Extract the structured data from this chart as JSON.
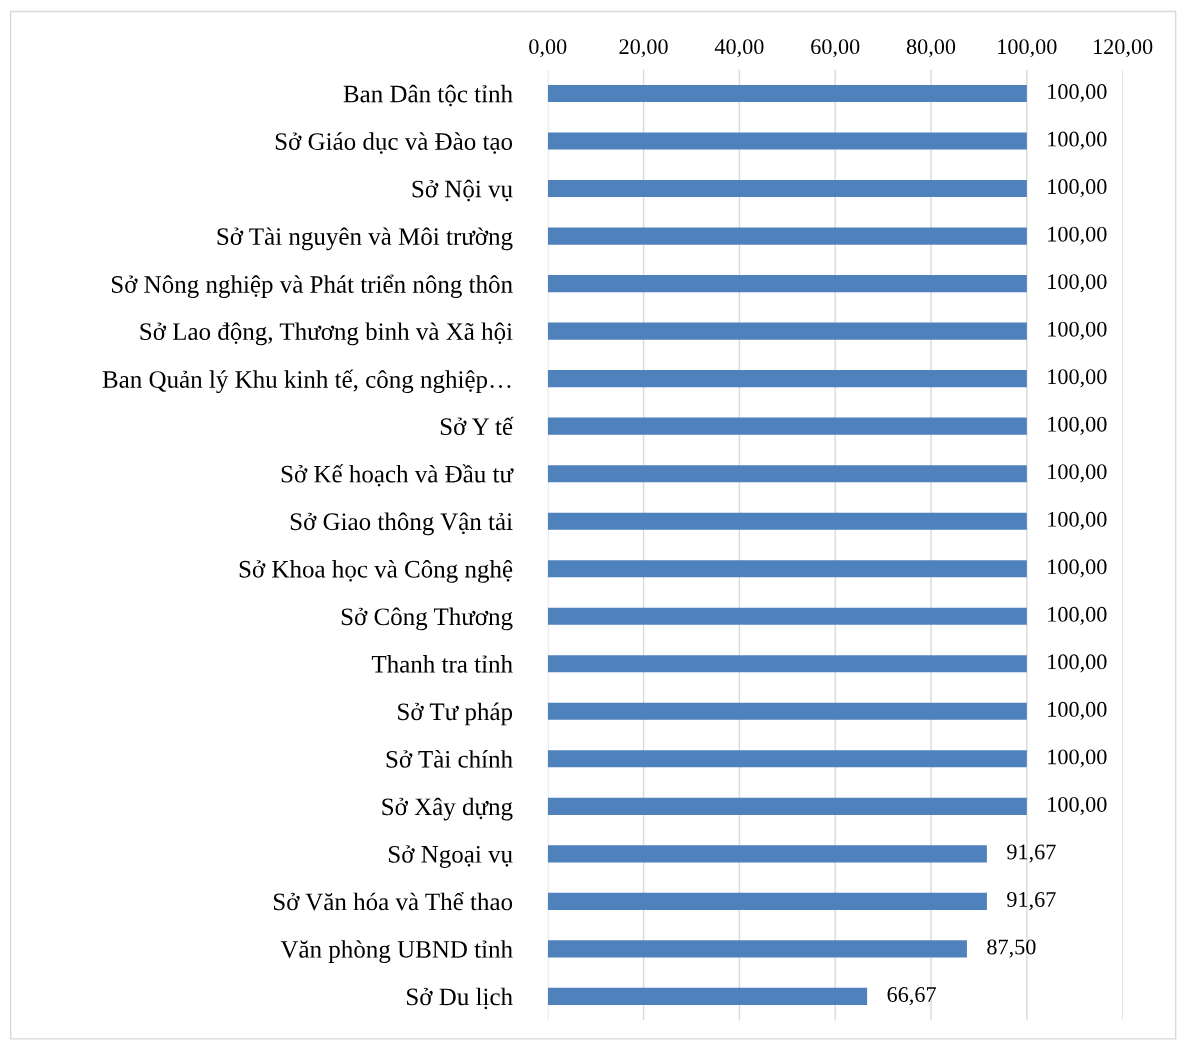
{
  "chart_data": {
    "type": "bar",
    "orientation": "horizontal",
    "categories": [
      "Ban Dân tộc tỉnh",
      "Sở Giáo dục và Đào tạo",
      "Sở Nội vụ",
      "Sở Tài nguyên và Môi trường",
      "Sở Nông nghiệp và Phát triển nông thôn",
      "Sở Lao động, Thương binh và Xã hội",
      "Ban Quản lý Khu kinh tế, công nghiệp…",
      "Sở Y tế",
      "Sở Kế hoạch và Đầu tư",
      "Sở Giao thông Vận tải",
      "Sở Khoa học và Công nghệ",
      "Sở Công Thương",
      "Thanh tra tỉnh",
      "Sở Tư pháp",
      "Sở Tài chính",
      "Sở Xây dựng",
      "Sở Ngoại vụ",
      "Sở Văn hóa và Thể thao",
      "Văn phòng UBND tỉnh",
      "Sở Du lịch"
    ],
    "values": [
      100,
      100,
      100,
      100,
      100,
      100,
      100,
      100,
      100,
      100,
      100,
      100,
      100,
      100,
      100,
      100,
      91.67,
      91.67,
      87.5,
      66.67
    ],
    "value_labels": [
      "100,00",
      "100,00",
      "100,00",
      "100,00",
      "100,00",
      "100,00",
      "100,00",
      "100,00",
      "100,00",
      "100,00",
      "100,00",
      "100,00",
      "100,00",
      "100,00",
      "100,00",
      "100,00",
      "91,67",
      "91,67",
      "87,50",
      "66,67"
    ],
    "color": "#4f81bd",
    "xlim": [
      0,
      120
    ],
    "xticks": [
      {
        "value": 0,
        "label": "0,00"
      },
      {
        "value": 20,
        "label": "20,00"
      },
      {
        "value": 40,
        "label": "40,00"
      },
      {
        "value": 60,
        "label": "60,00"
      },
      {
        "value": 80,
        "label": "80,00"
      },
      {
        "value": 100,
        "label": "100,00"
      },
      {
        "value": 120,
        "label": "120,00"
      }
    ],
    "grid": "x"
  }
}
